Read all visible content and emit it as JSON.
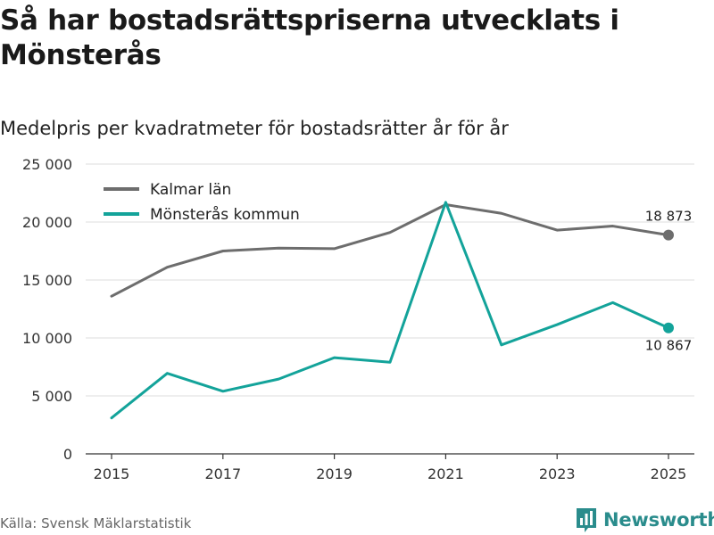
{
  "title": "Så har bostadsrättspriserna utvecklats i Mönsterås",
  "subtitle": "Medelpris per kvadratmeter för bostadsrätter år för år",
  "source": "Källa: Svensk Mäklarstatistik",
  "brand": {
    "name": "Newsworthy",
    "color": "#2a8c8c",
    "icon": "bar-chart-logo-icon"
  },
  "chart_data": {
    "type": "line",
    "x": [
      2015,
      2016,
      2017,
      2018,
      2019,
      2020,
      2021,
      2022,
      2023,
      2024,
      2025
    ],
    "x_ticks": [
      "2015",
      "2017",
      "2019",
      "2021",
      "2023",
      "2025"
    ],
    "y_ticks": [
      "0",
      "5 000",
      "10 000",
      "15 000",
      "20 000",
      "25 000"
    ],
    "ylim": [
      0,
      25000
    ],
    "grid": true,
    "legend_position": "top-left",
    "series": [
      {
        "name": "Kalmar län",
        "color": "#6d6d6d",
        "values": [
          13600,
          16100,
          17500,
          17750,
          17700,
          19100,
          21500,
          20750,
          19300,
          19650,
          18873
        ],
        "end_label": "18 873",
        "end_label_position": "above"
      },
      {
        "name": "Mönsterås kommun",
        "color": "#13a39a",
        "values": [
          3100,
          6950,
          5400,
          6450,
          8300,
          7900,
          21700,
          9400,
          11150,
          13050,
          10867
        ],
        "end_label": "10 867",
        "end_label_position": "below"
      }
    ]
  }
}
